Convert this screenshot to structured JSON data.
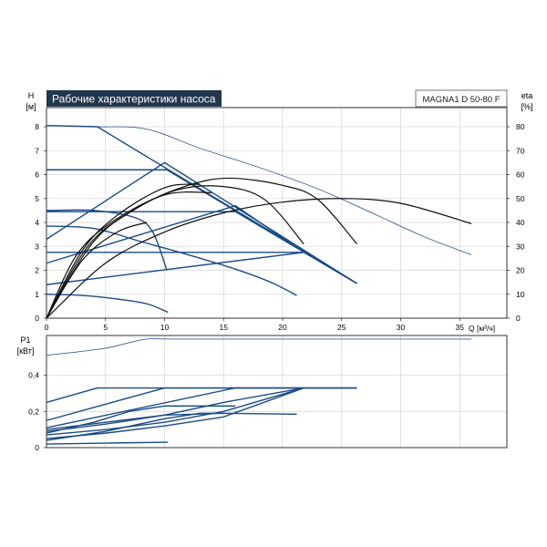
{
  "colors": {
    "title_bg": "#22364d",
    "title_fg": "#ffffff",
    "curve_blue": "#1b4b86",
    "curve_dark": "#0a1a3a",
    "curve_black": "#111111",
    "thin_blue": "#3f5f95",
    "grid": "#d9d9d9",
    "frame": "#333333"
  },
  "chart_data": [
    {
      "type": "line",
      "title": "Рабочие характеристики насоса",
      "model_label": "MAGNA1 D 50-80 F",
      "xlabel": "Q [м³/ч]",
      "ylabel": "H",
      "ylabel_unit": "[м]",
      "y2label": "eta",
      "y2label_unit": "[%]",
      "xlim": [
        0,
        39
      ],
      "ylim": [
        0,
        8.8
      ],
      "y2lim": [
        0,
        88
      ],
      "x_ticks": [
        0,
        5,
        10,
        15,
        20,
        25,
        30,
        35
      ],
      "x_tick_labels": [
        "0",
        "5",
        "10",
        "15",
        "20",
        "25",
        "30",
        "35"
      ],
      "y_ticks": [
        0,
        1,
        2,
        3,
        4,
        5,
        6,
        7,
        8
      ],
      "y_tick_labels": [
        "0",
        "1",
        "2",
        "3",
        "4",
        "5",
        "6",
        "7",
        "8"
      ],
      "y2_ticks": [
        0,
        10,
        20,
        30,
        40,
        50,
        60,
        70,
        80
      ],
      "y2_tick_labels": [
        "0",
        "10",
        "20",
        "30",
        "40",
        "50",
        "60",
        "70",
        "80"
      ],
      "grid": true,
      "series": [
        {
          "group": "head_max",
          "values": [
            [
              0,
              8.05
            ],
            [
              4.3,
              8.0
            ],
            [
              8.5,
              7.9
            ],
            [
              13,
              7.1
            ],
            [
              18,
              6.3
            ],
            [
              23,
              5.4
            ],
            [
              28,
              4.3
            ],
            [
              32,
              3.4
            ],
            [
              36,
              2.65
            ]
          ]
        },
        {
          "group": "head_const_pressure",
          "values": [
            [
              0,
              8.05
            ],
            [
              4.3,
              8.0
            ],
            [
              26.3,
              1.45
            ]
          ]
        },
        {
          "group": "head_const_pressure",
          "values": [
            [
              0,
              6.2
            ],
            [
              10.2,
              6.2
            ],
            [
              26.3,
              1.45
            ]
          ]
        },
        {
          "group": "head_const_pressure",
          "values": [
            [
              0,
              4.45
            ],
            [
              16,
              4.45
            ],
            [
              26.3,
              1.45
            ]
          ]
        },
        {
          "group": "head_const_pressure",
          "values": [
            [
              0,
              2.75
            ],
            [
              21.8,
              2.75
            ],
            [
              26.3,
              1.45
            ]
          ]
        },
        {
          "group": "head_prop_pressure",
          "values": [
            [
              0,
              3.3
            ],
            [
              10,
              6.5
            ],
            [
              26.3,
              1.45
            ]
          ]
        },
        {
          "group": "head_prop_pressure",
          "values": [
            [
              0,
              2.3
            ],
            [
              16,
              4.7
            ],
            [
              21.8,
              2.75
            ]
          ]
        },
        {
          "group": "head_prop_pressure",
          "values": [
            [
              0,
              1.4
            ],
            [
              21.8,
              2.75
            ]
          ]
        },
        {
          "group": "head_speed_curve",
          "values": [
            [
              0,
              3.85
            ],
            [
              4,
              3.75
            ],
            [
              8,
              3.2
            ],
            [
              12,
              2.65
            ],
            [
              16,
              2.05
            ],
            [
              19,
              1.5
            ],
            [
              21.2,
              0.95
            ]
          ]
        },
        {
          "group": "head_speed_curve",
          "values": [
            [
              0,
              1.0
            ],
            [
              3,
              0.95
            ],
            [
              6,
              0.8
            ],
            [
              8.5,
              0.6
            ],
            [
              10.3,
              0.25
            ]
          ]
        },
        {
          "group": "head_speed_curve",
          "values": [
            [
              0,
              4.5
            ],
            [
              4,
              4.5
            ],
            [
              7.5,
              4.2
            ],
            [
              9,
              3.6
            ],
            [
              10.2,
              2.0
            ]
          ]
        },
        {
          "group": "eta",
          "values": [
            [
              0,
              0
            ],
            [
              4,
              32
            ],
            [
              8,
              47
            ],
            [
              12,
              55.5
            ],
            [
              15.5,
              58.5
            ],
            [
              20,
              55.5
            ],
            [
              23,
              49.5
            ],
            [
              26.3,
              31
            ]
          ]
        },
        {
          "group": "eta",
          "values": [
            [
              0,
              0
            ],
            [
              3.5,
              30
            ],
            [
              7,
              44
            ],
            [
              11,
              53.5
            ],
            [
              15,
              55
            ],
            [
              18.5,
              49.5
            ],
            [
              21.8,
              31
            ]
          ]
        },
        {
          "group": "eta",
          "values": [
            [
              0,
              0
            ],
            [
              3,
              28
            ],
            [
              6,
              43
            ],
            [
              10,
              54.5
            ],
            [
              13,
              56
            ]
          ]
        },
        {
          "group": "eta",
          "values": [
            [
              0,
              0
            ],
            [
              2.5,
              26
            ],
            [
              5.5,
              40
            ],
            [
              10,
              51.5
            ],
            [
              14,
              52.5
            ]
          ]
        },
        {
          "group": "eta",
          "values": [
            [
              0,
              0
            ],
            [
              3,
              24
            ],
            [
              6,
              36
            ],
            [
              8.5,
              40
            ]
          ]
        },
        {
          "group": "eta",
          "values": [
            [
              0,
              0
            ],
            [
              5,
              23
            ],
            [
              10,
              36
            ],
            [
              15,
              44
            ],
            [
              20,
              48.5
            ],
            [
              25,
              50
            ],
            [
              30,
              48
            ],
            [
              36,
              39.5
            ]
          ]
        }
      ]
    },
    {
      "type": "line",
      "ylabel": "P1",
      "ylabel_unit": "[кВт]",
      "xlim": [
        0,
        39
      ],
      "ylim": [
        0,
        0.62
      ],
      "y_ticks": [
        0,
        0.2,
        0.4
      ],
      "y_tick_labels": [
        "0",
        "0,2",
        "0,4"
      ],
      "grid": true,
      "series": [
        {
          "group": "p1_max",
          "values": [
            [
              0,
              0.51
            ],
            [
              5,
              0.55
            ],
            [
              8.5,
              0.6
            ],
            [
              12,
              0.6
            ],
            [
              36,
              0.6
            ]
          ]
        },
        {
          "group": "p1_curve",
          "values": [
            [
              0,
              0.25
            ],
            [
              4.3,
              0.33
            ],
            [
              26.3,
              0.33
            ]
          ]
        },
        {
          "group": "p1_curve",
          "values": [
            [
              0,
              0.15
            ],
            [
              10,
              0.33
            ],
            [
              26.3,
              0.33
            ]
          ]
        },
        {
          "group": "p1_curve",
          "values": [
            [
              0,
              0.11
            ],
            [
              16,
              0.33
            ],
            [
              26.3,
              0.33
            ]
          ]
        },
        {
          "group": "p1_curve",
          "values": [
            [
              0,
              0.09
            ],
            [
              5,
              0.13
            ],
            [
              10,
              0.18
            ],
            [
              15,
              0.25
            ],
            [
              21.8,
              0.33
            ]
          ]
        },
        {
          "group": "p1_curve",
          "values": [
            [
              0,
              0.07
            ],
            [
              5,
              0.1
            ],
            [
              10,
              0.14
            ],
            [
              15,
              0.2
            ],
            [
              21.8,
              0.33
            ]
          ]
        },
        {
          "group": "p1_curve",
          "values": [
            [
              0,
              0.05
            ],
            [
              5,
              0.08
            ],
            [
              10,
              0.12
            ],
            [
              15,
              0.17
            ],
            [
              21.8,
              0.33
            ]
          ]
        },
        {
          "group": "p1_curve",
          "values": [
            [
              0,
              0.1
            ],
            [
              5,
              0.14
            ],
            [
              10,
              0.18
            ],
            [
              15,
              0.19
            ],
            [
              21.2,
              0.185
            ]
          ]
        },
        {
          "group": "p1_curve",
          "values": [
            [
              0,
              0.04
            ],
            [
              5,
              0.09
            ],
            [
              10,
              0.16
            ],
            [
              13,
              0.19
            ],
            [
              15,
              0.19
            ]
          ]
        },
        {
          "group": "p1_curve",
          "values": [
            [
              0,
              0.08
            ],
            [
              4,
              0.14
            ],
            [
              7,
              0.2
            ],
            [
              10,
              0.23
            ],
            [
              16,
              0.23
            ]
          ]
        },
        {
          "group": "p1_curve",
          "values": [
            [
              0,
              0.02
            ],
            [
              5,
              0.025
            ],
            [
              10.3,
              0.03
            ]
          ]
        }
      ]
    }
  ]
}
